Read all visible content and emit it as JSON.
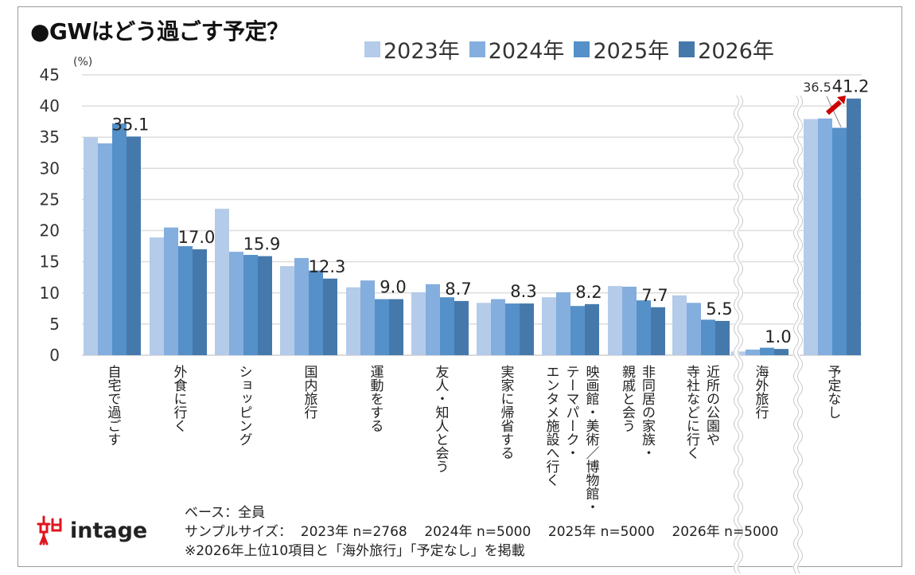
{
  "chart_data": {
    "type": "bar",
    "title": "●GWはどう過ごす予定？",
    "ylabel": "(%)",
    "ylim": [
      0,
      45
    ],
    "yticks": [
      0,
      5,
      10,
      15,
      20,
      25,
      30,
      35,
      40,
      45
    ],
    "grid": true,
    "legend_position": "top-right",
    "axis_break": "wavy breaks before 海外旅行 and 予定なし",
    "categories": [
      "自宅で過ごす",
      "外食に行く",
      "ショッピング",
      "国内旅行",
      "運動をする",
      "友人・知人と会う",
      "実家に帰省する",
      "映画館・美術／博物館・\nテーマパーク・\nエンタメ施設へ行く",
      "非同居の家族・\n親戚と会う",
      "近所の公園や\n寺社などに行く",
      "海外旅行",
      "予定なし"
    ],
    "series": [
      {
        "name": "2023年",
        "color": "#b4cbe9",
        "values": [
          35.0,
          18.9,
          23.5,
          14.3,
          10.9,
          10.1,
          8.4,
          9.3,
          11.1,
          9.6,
          0.6,
          37.9
        ]
      },
      {
        "name": "2024年",
        "color": "#84aedd",
        "values": [
          34.0,
          20.5,
          16.6,
          15.6,
          12.0,
          11.4,
          9.0,
          10.1,
          11.0,
          8.4,
          0.9,
          38.0
        ]
      },
      {
        "name": "2025年",
        "color": "#5590c8",
        "values": [
          37.2,
          17.5,
          16.1,
          13.6,
          9.0,
          9.3,
          8.3,
          7.9,
          8.8,
          5.7,
          1.2,
          36.5
        ]
      },
      {
        "name": "2026年",
        "color": "#4679ab",
        "values": [
          35.1,
          17.0,
          15.9,
          12.3,
          9.0,
          8.7,
          8.3,
          8.2,
          7.7,
          5.5,
          1.0,
          41.2
        ]
      }
    ],
    "data_labels": [
      "35.1",
      "17.0",
      "15.9",
      "12.3",
      "9.0",
      "8.7",
      "8.3",
      "8.2",
      "7.7",
      "5.5",
      "1.0",
      "41.2"
    ],
    "extra_label": "36.5",
    "arrow_color": "#cc0000"
  },
  "footer": {
    "base": "ベース：全員",
    "sample": "サンプルサイズ：  2023年 n=2768    2024年 n=5000    2025年 n=5000    2026年 n=5000",
    "note": "※2026年上位10項目と「海外旅行」「予定なし」を掲載"
  },
  "logo": {
    "text": "intage",
    "color": "#e0141e"
  }
}
